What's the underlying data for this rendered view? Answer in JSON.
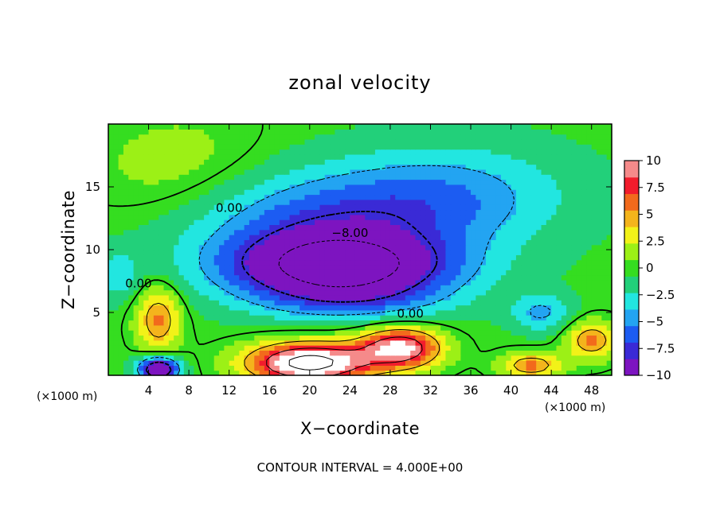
{
  "chart_data": {
    "type": "heatmap",
    "title": "zonal velocity",
    "xlabel": "X−coordinate",
    "ylabel": "Z−coordinate",
    "x_unit": "(×1000 m)",
    "x_unit_right": "(×1000 m)",
    "xlim": [
      0,
      50
    ],
    "ylim": [
      0,
      20
    ],
    "x_ticks": [
      4,
      8,
      12,
      16,
      20,
      24,
      28,
      32,
      36,
      40,
      44,
      48
    ],
    "y_ticks": [
      5,
      10,
      15
    ],
    "colorbar": {
      "min": -10,
      "max": 10,
      "ticks": [
        {
          "value": 10,
          "label": "10"
        },
        {
          "value": 7.5,
          "label": "7.5"
        },
        {
          "value": 5,
          "label": "5"
        },
        {
          "value": 2.5,
          "label": "2.5"
        },
        {
          "value": 0,
          "label": "0"
        },
        {
          "value": -2.5,
          "label": "−2.5"
        },
        {
          "value": -5,
          "label": "−5"
        },
        {
          "value": -7.5,
          "label": "−7.5"
        },
        {
          "value": -10,
          "label": "−10"
        }
      ]
    },
    "contour_labels": [
      {
        "text": "0.00",
        "x": 12,
        "z": 13
      },
      {
        "text": "0.00",
        "x": 3,
        "z": 7
      },
      {
        "text": "0.00",
        "x": 30,
        "z": 4.6
      },
      {
        "text": "−8.00",
        "x": 24,
        "z": 11
      }
    ],
    "features": [
      {
        "x": 23,
        "z": 8.5,
        "value": -12,
        "sx": 11,
        "sz": 2.6
      },
      {
        "x": 21,
        "z": 12,
        "value": -6,
        "sx": 14,
        "sz": 4
      },
      {
        "x": 34,
        "z": 14.5,
        "value": -4,
        "sx": 12,
        "sz": 4
      },
      {
        "x": 20,
        "z": 1,
        "value": 14,
        "sx": 6,
        "sz": 1.6
      },
      {
        "x": 29,
        "z": 2.2,
        "value": 11,
        "sx": 4,
        "sz": 1.6
      },
      {
        "x": 5,
        "z": 4.5,
        "value": 6,
        "sx": 2.2,
        "sz": 2.6
      },
      {
        "x": 42,
        "z": 0.8,
        "value": 6,
        "sx": 3,
        "sz": 1
      },
      {
        "x": 48,
        "z": 2.8,
        "value": 6,
        "sx": 2.5,
        "sz": 1.5
      },
      {
        "x": 5,
        "z": 0.5,
        "value": -12,
        "sx": 2,
        "sz": 1
      },
      {
        "x": 7,
        "z": 16,
        "value": 2,
        "sx": 9,
        "sz": 5
      },
      {
        "x": 43,
        "z": 5,
        "value": -4,
        "sx": 3,
        "sz": 1.5
      },
      {
        "x": 1,
        "z": 8,
        "value": -3,
        "sx": 2,
        "sz": 2
      },
      {
        "x": 24,
        "z": 5.8,
        "value": -3,
        "sx": 10,
        "sz": 1.6
      }
    ],
    "base_value": -0.3,
    "contour_interval": 4
  },
  "footnote": "CONTOUR INTERVAL = 4.000E+00",
  "colors": {
    "background": "#ffffff",
    "axis": "#000000",
    "palette": [
      "#7d14c0",
      "#3a2ad6",
      "#1c5cf2",
      "#23a4f2",
      "#22e6e0",
      "#22d07a",
      "#35dd20",
      "#9cf016",
      "#f2f218",
      "#f4b41c",
      "#f26a1c",
      "#f21c2c",
      "#f58a8a",
      "#ffffff"
    ]
  }
}
